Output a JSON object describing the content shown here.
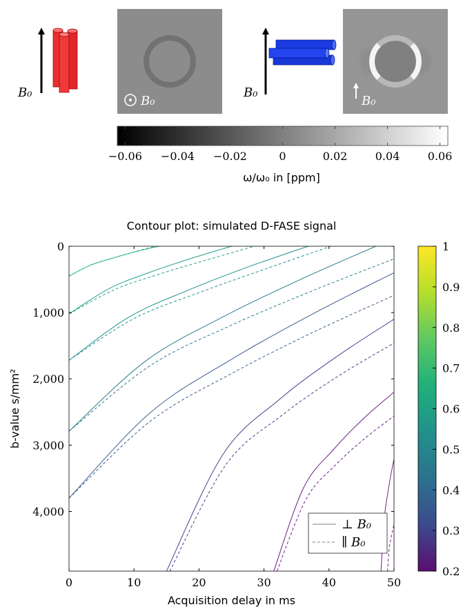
{
  "illustration": {
    "field_labels": [
      "B₀",
      "B₀"
    ],
    "image_labels": [
      "B₀",
      "B₀"
    ]
  },
  "chart_data": [
    {
      "type": "colorbar",
      "xlabel": "ω/ω₀ in [ppm]",
      "colormap": [
        "#000000",
        "#ffffff"
      ],
      "xlim": [
        -0.063,
        0.063
      ],
      "xticks": [
        {
          "value": -0.06,
          "label": "−0.06"
        },
        {
          "value": -0.04,
          "label": "−0.04"
        },
        {
          "value": -0.02,
          "label": "−0.02"
        },
        0,
        0.02,
        0.04,
        0.06
      ]
    },
    {
      "type": "contour",
      "title": "Contour plot: simulated D-FASE signal",
      "xlabel": "Acquisition delay in ms",
      "ylabel": "b-value s/mm²",
      "xlim": [
        0,
        50
      ],
      "ylim": [
        0,
        4900
      ],
      "y_reversed": true,
      "xticks": [
        0,
        10,
        20,
        30,
        40,
        50
      ],
      "yticks": [
        0,
        {
          "value": 1000,
          "label": "1,000"
        },
        {
          "value": 2000,
          "label": "2,000"
        },
        {
          "value": 3000,
          "label": "3,000"
        },
        {
          "value": 4000,
          "label": "4,000"
        }
      ],
      "legend": "lower right",
      "colorbar": {
        "lim": [
          0.2,
          1
        ],
        "ticks": [
          0.2,
          0.3,
          0.4,
          0.5,
          0.6,
          0.7,
          0.8,
          0.9,
          1
        ],
        "colormap": [
          "#5a0e72",
          "#3b4a8c",
          "#2c728e",
          "#21918c",
          "#20b07a",
          "#5ec962",
          "#b5de2b",
          "#fde725"
        ]
      },
      "series": [
        {
          "name": "⊥ B₀",
          "dash": false,
          "color": "#808080",
          "contours": [
            {
              "color": "#27b47b",
              "x": [
                0,
                3.45,
                6.9,
                10.35,
                13.8
              ],
              "y": [
                450,
                280,
                175,
                80,
                0
              ]
            },
            {
              "color": "#1fa187",
              "x": [
                0,
                6.25,
                12.5,
                18.75,
                25
              ],
              "y": [
                1020,
                635,
                390,
                185,
                0
              ]
            },
            {
              "color": "#21918c",
              "x": [
                0,
                9.2,
                18.4,
                27.6,
                36.8
              ],
              "y": [
                1720,
                1070,
                660,
                310,
                0
              ]
            },
            {
              "color": "#2a7b8e",
              "x": [
                0,
                11.8,
                23.6,
                35.4,
                47.2
              ],
              "y": [
                2790,
                1730,
                1070,
                510,
                0
              ]
            },
            {
              "color": "#3a5d8d",
              "x": [
                0,
                12.5,
                25,
                37.5,
                50
              ],
              "y": [
                3800,
                2510,
                1705,
                1020,
                400
              ]
            },
            {
              "color": "#4a3d8c",
              "x": [
                15,
                23.75,
                32.5,
                41.25,
                50
              ],
              "y": [
                4900,
                3130,
                2300,
                1660,
                1100
              ]
            },
            {
              "color": "#6a1f87",
              "x": [
                31.5,
                36.1,
                40.75,
                45.4,
                50
              ],
              "y": [
                4900,
                3640,
                3060,
                2590,
                2200
              ]
            },
            {
              "color": "#7b1a86",
              "x": [
                48,
                48.5,
                49,
                49.5,
                50
              ],
              "y": [
                4900,
                4110,
                3750,
                3460,
                3210
              ]
            }
          ]
        },
        {
          "name": "∥ B₀",
          "dash": true,
          "color": "#808080",
          "contours": [
            {
              "color": "#27b47b",
              "x": [
                0,
                3.3,
                6.65,
                10,
                13.3
              ],
              "y": [
                450,
                285,
                180,
                85,
                0
              ]
            },
            {
              "color": "#1fa187",
              "x": [
                0,
                7.1,
                14.25,
                21.4,
                28.5
              ],
              "y": [
                1020,
                650,
                410,
                200,
                0
              ]
            },
            {
              "color": "#21918c",
              "x": [
                0,
                10,
                20,
                30,
                40.3
              ],
              "y": [
                1720,
                1090,
                700,
                350,
                0
              ]
            },
            {
              "color": "#2a7b8e",
              "x": [
                0,
                12.5,
                25,
                37.5,
                50
              ],
              "y": [
                2790,
                1800,
                1190,
                670,
                190
              ]
            },
            {
              "color": "#3a5d8d",
              "x": [
                0,
                12.5,
                25,
                37.5,
                50
              ],
              "y": [
                3800,
                2640,
                1920,
                1300,
                740
              ]
            },
            {
              "color": "#4a3d8c",
              "x": [
                15.5,
                24.1,
                32.75,
                41.4,
                50
              ],
              "y": [
                4900,
                3300,
                2550,
                1960,
                1460
              ]
            },
            {
              "color": "#6a1f87",
              "x": [
                32,
                36.5,
                41,
                45.5,
                50
              ],
              "y": [
                4900,
                3810,
                3300,
                2900,
                2560
              ]
            },
            {
              "color": "#7b1a86",
              "x": [
                49,
                49.25,
                49.5,
                49.75,
                50
              ],
              "y": [
                4900,
                4570,
                4420,
                4300,
                4200
              ]
            }
          ]
        }
      ]
    }
  ]
}
